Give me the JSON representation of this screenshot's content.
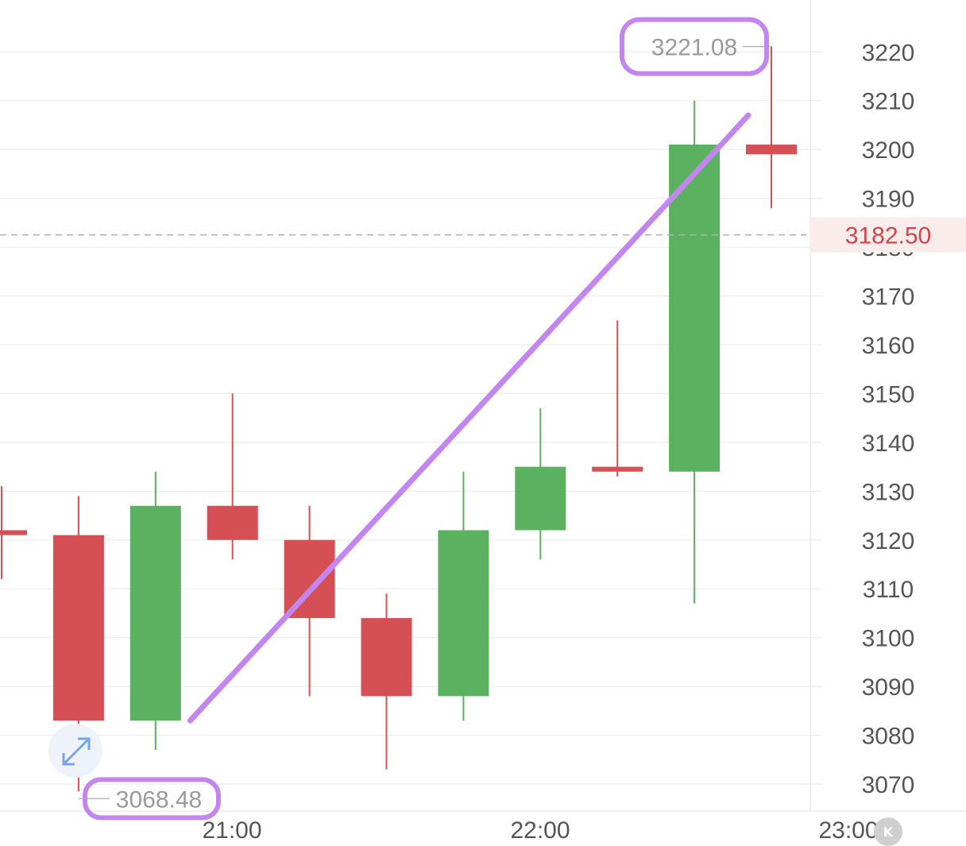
{
  "chart_data": {
    "type": "candlestick",
    "y_axis": {
      "ticks": [
        3070,
        3080,
        3090,
        3100,
        3110,
        3120,
        3130,
        3140,
        3150,
        3160,
        3170,
        3180,
        3190,
        3200,
        3210,
        3220
      ],
      "position": "right"
    },
    "x_axis": {
      "ticks": [
        "21:00",
        "22:00",
        "23:00"
      ]
    },
    "candles": [
      {
        "open": 3122,
        "high": 3131,
        "low": 3112,
        "close": 3121
      },
      {
        "open": 3121,
        "high": 3129,
        "low": 3068.48,
        "close": 3083
      },
      {
        "open": 3083,
        "high": 3134,
        "low": 3077,
        "close": 3127
      },
      {
        "open": 3127,
        "high": 3150,
        "low": 3116,
        "close": 3120
      },
      {
        "open": 3120,
        "high": 3127,
        "low": 3088,
        "close": 3104
      },
      {
        "open": 3104,
        "high": 3109,
        "low": 3073,
        "close": 3088
      },
      {
        "open": 3088,
        "high": 3134,
        "low": 3083,
        "close": 3122
      },
      {
        "open": 3122,
        "high": 3147,
        "low": 3116,
        "close": 3135
      },
      {
        "open": 3135,
        "high": 3165,
        "low": 3133,
        "close": 3134
      },
      {
        "open": 3134,
        "high": 3210,
        "low": 3107,
        "close": 3201
      },
      {
        "open": 3201,
        "high": 3221.08,
        "low": 3188,
        "close": 3199
      }
    ],
    "current_price": 3182.5,
    "current_price_label": "3182.50",
    "high_marker": {
      "label": "3221.08",
      "value": 3221.08,
      "candle_index": 10
    },
    "low_marker": {
      "label": "3068.48",
      "value": 3068.48,
      "candle_index": 1
    },
    "trend_line": {
      "from": {
        "candle_index": 2.45,
        "value": 3083
      },
      "to": {
        "candle_index": 9.7,
        "value": 3207
      }
    },
    "colors": {
      "up": "#5bb160",
      "down": "#d45055",
      "grid": "#ececec",
      "annotation": "#c386ee",
      "current_price": "#d0454c",
      "current_price_bg": "#fbecec"
    }
  },
  "icons": {
    "expand": "expand-arrows-icon",
    "watermark": "k-logo-icon"
  },
  "watermark_text": "K"
}
